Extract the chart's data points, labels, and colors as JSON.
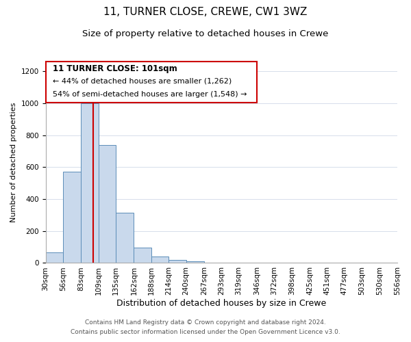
{
  "title": "11, TURNER CLOSE, CREWE, CW1 3WZ",
  "subtitle": "Size of property relative to detached houses in Crewe",
  "xlabel": "Distribution of detached houses by size in Crewe",
  "ylabel": "Number of detached properties",
  "bin_edges": [
    30,
    56,
    83,
    109,
    135,
    162,
    188,
    214,
    240,
    267,
    293,
    319,
    346,
    372,
    398,
    425,
    451,
    477,
    503,
    530,
    556
  ],
  "bar_heights": [
    65,
    570,
    1000,
    740,
    315,
    95,
    40,
    20,
    10,
    0,
    0,
    0,
    0,
    0,
    0,
    0,
    0,
    0,
    0,
    0
  ],
  "bar_color": "#c9d9ec",
  "bar_edgecolor": "#5b8db8",
  "vline_x": 101,
  "vline_color": "#cc0000",
  "annotation_line1": "11 TURNER CLOSE: 101sqm",
  "annotation_line2": "← 44% of detached houses are smaller (1,262)",
  "annotation_line3": "54% of semi-detached houses are larger (1,548) →",
  "ylim_max": 1260,
  "yticks": [
    0,
    200,
    400,
    600,
    800,
    1000,
    1200
  ],
  "footer_line1": "Contains HM Land Registry data © Crown copyright and database right 2024.",
  "footer_line2": "Contains public sector information licensed under the Open Government Licence v3.0.",
  "title_fontsize": 11,
  "subtitle_fontsize": 9.5,
  "xlabel_fontsize": 9,
  "ylabel_fontsize": 8,
  "tick_label_fontsize": 7.5,
  "footer_fontsize": 6.5,
  "annotation_fontsize": 8.5,
  "bar_linewidth": 0.7,
  "vline_linewidth": 1.5,
  "grid_color": "#d0d8e8",
  "grid_linewidth": 0.6
}
